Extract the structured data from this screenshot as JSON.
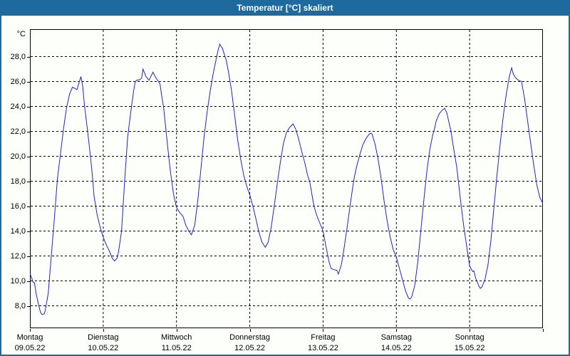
{
  "window": {
    "title": "Temperatur [°C] skaliert",
    "titlebar_color": "#1e699e",
    "background_color": "#fcfffa",
    "border_color": "#1e699e"
  },
  "chart_data": {
    "type": "line",
    "title": "Temperatur [°C] skaliert",
    "xlabel": "",
    "ylabel": "°C",
    "grid": "dashed",
    "legend": "none",
    "line_color": "#2222cc",
    "grid_color": "#000000",
    "ylim": [
      6.2,
      30.2
    ],
    "x_hours_range": [
      0,
      168
    ],
    "y_axis": {
      "unit_label": "°C",
      "tick_values": [
        28,
        26,
        24,
        22,
        20,
        18,
        16,
        14,
        12,
        10,
        8
      ],
      "tick_labels": [
        "28,0",
        "26,0",
        "24,0",
        "22,0",
        "20,0",
        "18,0",
        "16,0",
        "14,0",
        "12,0",
        "10,0",
        "8,0"
      ]
    },
    "x_axis": {
      "days": [
        {
          "label": "Montag",
          "date": "09.05.22"
        },
        {
          "label": "Dienstag",
          "date": "10.05.22"
        },
        {
          "label": "Mittwoch",
          "date": "11.05.22"
        },
        {
          "label": "Donnerstag",
          "date": "12.05.22"
        },
        {
          "label": "Freitag",
          "date": "13.05.22"
        },
        {
          "label": "Samstag",
          "date": "14.05.22"
        },
        {
          "label": "Sonntag",
          "date": "15.05.22"
        }
      ]
    },
    "series": [
      {
        "points": [
          [
            0,
            10.6
          ],
          [
            0.5,
            10.3
          ],
          [
            1,
            9.9
          ],
          [
            1.5,
            9.85
          ],
          [
            2,
            9.0
          ],
          [
            3,
            7.9
          ],
          [
            3.5,
            7.45
          ],
          [
            4,
            7.3
          ],
          [
            4.7,
            7.35
          ],
          [
            5,
            7.6
          ],
          [
            6,
            9.0
          ],
          [
            7,
            12.0
          ],
          [
            8,
            15.0
          ],
          [
            9,
            18.2
          ],
          [
            10,
            20.2
          ],
          [
            11,
            22.2
          ],
          [
            12,
            23.9
          ],
          [
            13,
            25.0
          ],
          [
            13.9,
            25.55
          ],
          [
            14.7,
            25.45
          ],
          [
            15.4,
            25.35
          ],
          [
            16.2,
            26.0
          ],
          [
            16.7,
            26.4
          ],
          [
            17.3,
            25.6
          ],
          [
            17.9,
            24.0
          ],
          [
            18.9,
            22.0
          ],
          [
            19.8,
            20.0
          ],
          [
            20.5,
            18.3
          ],
          [
            21,
            16.8
          ],
          [
            22,
            15.3
          ],
          [
            23,
            14.3
          ],
          [
            24,
            13.5
          ],
          [
            25,
            12.9
          ],
          [
            26,
            12.4
          ],
          [
            27,
            11.8
          ],
          [
            27.7,
            11.6
          ],
          [
            28.5,
            11.8
          ],
          [
            29,
            12.3
          ],
          [
            30,
            14.0
          ],
          [
            31,
            18.0
          ],
          [
            32,
            21.5
          ],
          [
            33,
            23.5
          ],
          [
            34,
            25.3
          ],
          [
            34.5,
            26.0
          ],
          [
            35,
            26.1
          ],
          [
            36,
            26.15
          ],
          [
            36.6,
            26.3
          ],
          [
            37,
            27.0
          ],
          [
            38,
            26.4
          ],
          [
            39,
            26.1
          ],
          [
            40.3,
            26.75
          ],
          [
            41,
            26.4
          ],
          [
            42.6,
            25.8
          ],
          [
            43.2,
            24.8
          ],
          [
            43.8,
            23.9
          ],
          [
            45,
            21.0
          ],
          [
            46,
            18.8
          ],
          [
            47,
            17.0
          ],
          [
            48,
            15.9
          ],
          [
            49,
            15.5
          ],
          [
            50.1,
            15.2
          ],
          [
            51,
            14.5
          ],
          [
            52,
            14.0
          ],
          [
            52.9,
            13.7
          ],
          [
            54,
            14.5
          ],
          [
            55,
            16.5
          ],
          [
            56,
            19.0
          ],
          [
            57,
            21.5
          ],
          [
            58,
            23.5
          ],
          [
            59,
            25.2
          ],
          [
            60,
            26.6
          ],
          [
            61,
            27.8
          ],
          [
            61.7,
            28.6
          ],
          [
            62.2,
            29.0
          ],
          [
            62.6,
            28.8
          ],
          [
            63,
            28.7
          ],
          [
            63.5,
            28.3
          ],
          [
            64.3,
            27.7
          ],
          [
            65,
            26.8
          ],
          [
            66,
            25.3
          ],
          [
            67,
            23.4
          ],
          [
            68,
            21.4
          ],
          [
            69,
            19.8
          ],
          [
            70,
            18.5
          ],
          [
            71,
            17.6
          ],
          [
            72,
            16.9
          ],
          [
            73,
            16.0
          ],
          [
            74,
            15.0
          ],
          [
            75,
            13.9
          ],
          [
            76,
            13.1
          ],
          [
            77.1,
            12.7
          ],
          [
            78,
            13.1
          ],
          [
            79,
            14.3
          ],
          [
            80,
            16.0
          ],
          [
            81,
            17.8
          ],
          [
            82,
            19.5
          ],
          [
            83,
            21.0
          ],
          [
            84,
            21.9
          ],
          [
            85,
            22.3
          ],
          [
            86.2,
            22.6
          ],
          [
            87,
            22.2
          ],
          [
            88,
            21.4
          ],
          [
            89,
            20.4
          ],
          [
            90,
            19.5
          ],
          [
            91,
            18.4
          ],
          [
            91.6,
            18.0
          ],
          [
            93,
            16.0
          ],
          [
            94,
            15.2
          ],
          [
            95,
            14.6
          ],
          [
            96,
            14.0
          ],
          [
            97,
            12.7
          ],
          [
            98,
            11.5
          ],
          [
            98.6,
            11.0
          ],
          [
            99.5,
            10.9
          ],
          [
            100.5,
            10.85
          ],
          [
            101,
            10.55
          ],
          [
            102,
            11.3
          ],
          [
            103,
            12.8
          ],
          [
            104,
            14.5
          ],
          [
            105,
            16.3
          ],
          [
            106,
            18.0
          ],
          [
            106.3,
            18.4
          ],
          [
            107,
            19.2
          ],
          [
            108,
            20.1
          ],
          [
            109,
            20.9
          ],
          [
            110,
            21.4
          ],
          [
            111,
            21.75
          ],
          [
            111.6,
            21.85
          ],
          [
            112,
            21.8
          ],
          [
            113,
            21.0
          ],
          [
            114,
            19.8
          ],
          [
            115,
            18.2
          ],
          [
            116,
            16.4
          ],
          [
            117,
            14.8
          ],
          [
            118,
            13.5
          ],
          [
            119,
            12.5
          ],
          [
            120,
            11.9
          ],
          [
            121,
            11.0
          ],
          [
            122,
            10.1
          ],
          [
            123,
            9.2
          ],
          [
            124,
            8.6
          ],
          [
            124.5,
            8.55
          ],
          [
            125,
            8.7
          ],
          [
            126,
            9.6
          ],
          [
            127,
            11.5
          ],
          [
            128,
            14.0
          ],
          [
            129,
            16.5
          ],
          [
            130,
            18.8
          ],
          [
            131,
            20.6
          ],
          [
            132,
            21.8
          ],
          [
            132.3,
            22.0
          ],
          [
            133,
            22.8
          ],
          [
            134,
            23.4
          ],
          [
            135,
            23.7
          ],
          [
            135.8,
            23.85
          ],
          [
            136.5,
            23.5
          ],
          [
            137.9,
            22.0
          ],
          [
            138.5,
            21.0
          ],
          [
            139.8,
            19.1
          ],
          [
            141,
            16.5
          ],
          [
            142,
            14.5
          ],
          [
            143,
            12.8
          ],
          [
            144,
            11.2
          ],
          [
            145,
            10.75
          ],
          [
            145.4,
            10.8
          ],
          [
            146,
            10.2
          ],
          [
            147,
            9.6
          ],
          [
            147.5,
            9.4
          ],
          [
            148,
            9.5
          ],
          [
            149,
            10.1
          ],
          [
            150,
            11.3
          ],
          [
            151,
            13.3
          ],
          [
            152,
            16.0
          ],
          [
            153,
            18.6
          ],
          [
            154,
            21.0
          ],
          [
            155,
            23.2
          ],
          [
            156,
            25.0
          ],
          [
            157,
            26.4
          ],
          [
            157.75,
            27.1
          ],
          [
            158.3,
            26.6
          ],
          [
            159,
            26.3
          ],
          [
            160,
            26.1
          ],
          [
            161,
            26.0
          ],
          [
            162,
            24.6
          ],
          [
            163,
            22.8
          ],
          [
            164,
            21.0
          ],
          [
            165,
            19.3
          ],
          [
            166,
            17.7
          ],
          [
            167,
            16.7
          ],
          [
            168,
            16.2
          ]
        ]
      }
    ]
  }
}
